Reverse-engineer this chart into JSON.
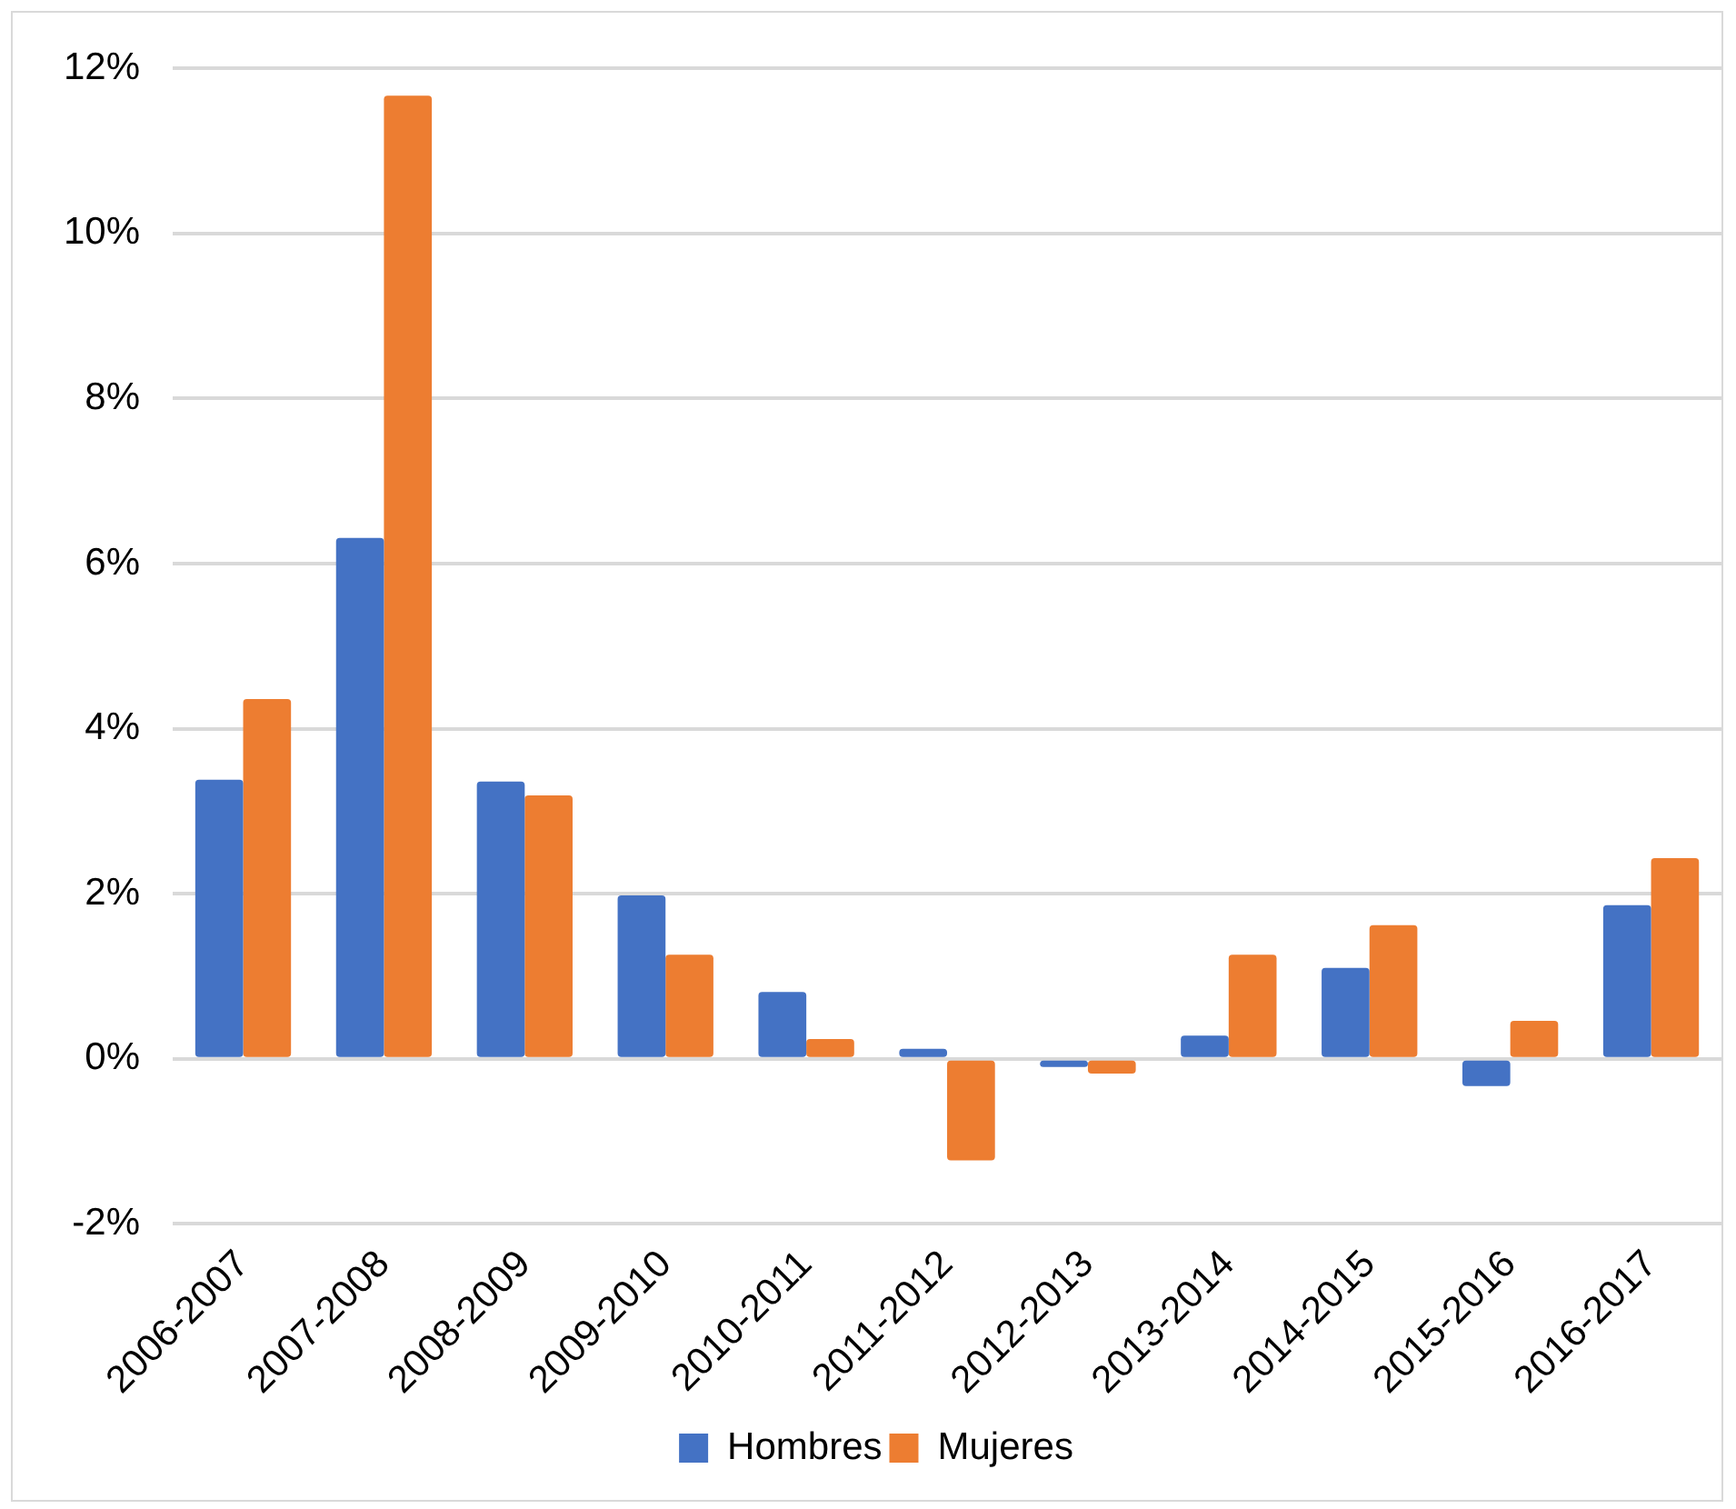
{
  "chart_data": {
    "type": "bar",
    "categories": [
      "2006-2007",
      "2007-2008",
      "2008-2009",
      "2009-2010",
      "2010-2011",
      "2011-2012",
      "2012-2013",
      "2013-2014",
      "2014-2015",
      "2015-2016",
      "2016-2017"
    ],
    "series": [
      {
        "name": "Hombres",
        "color": "#4472c4",
        "values": [
          3.38,
          6.31,
          3.36,
          1.98,
          0.81,
          0.12,
          -0.1,
          0.28,
          1.1,
          -0.33,
          1.86
        ]
      },
      {
        "name": "Mujeres",
        "color": "#ed7d31",
        "values": [
          4.36,
          11.67,
          3.19,
          1.26,
          0.24,
          -1.23,
          -0.18,
          1.26,
          1.62,
          0.46,
          2.43
        ]
      }
    ],
    "ylim": [
      -2,
      12
    ],
    "yticks": [
      {
        "value": -2,
        "label": "-2%"
      },
      {
        "value": 0,
        "label": "0%"
      },
      {
        "value": 2,
        "label": "2%"
      },
      {
        "value": 4,
        "label": "4%"
      },
      {
        "value": 6,
        "label": "6%"
      },
      {
        "value": 8,
        "label": "8%"
      },
      {
        "value": 10,
        "label": "10%"
      },
      {
        "value": 12,
        "label": "12%"
      }
    ],
    "grid": "y",
    "legend": "bottom"
  }
}
